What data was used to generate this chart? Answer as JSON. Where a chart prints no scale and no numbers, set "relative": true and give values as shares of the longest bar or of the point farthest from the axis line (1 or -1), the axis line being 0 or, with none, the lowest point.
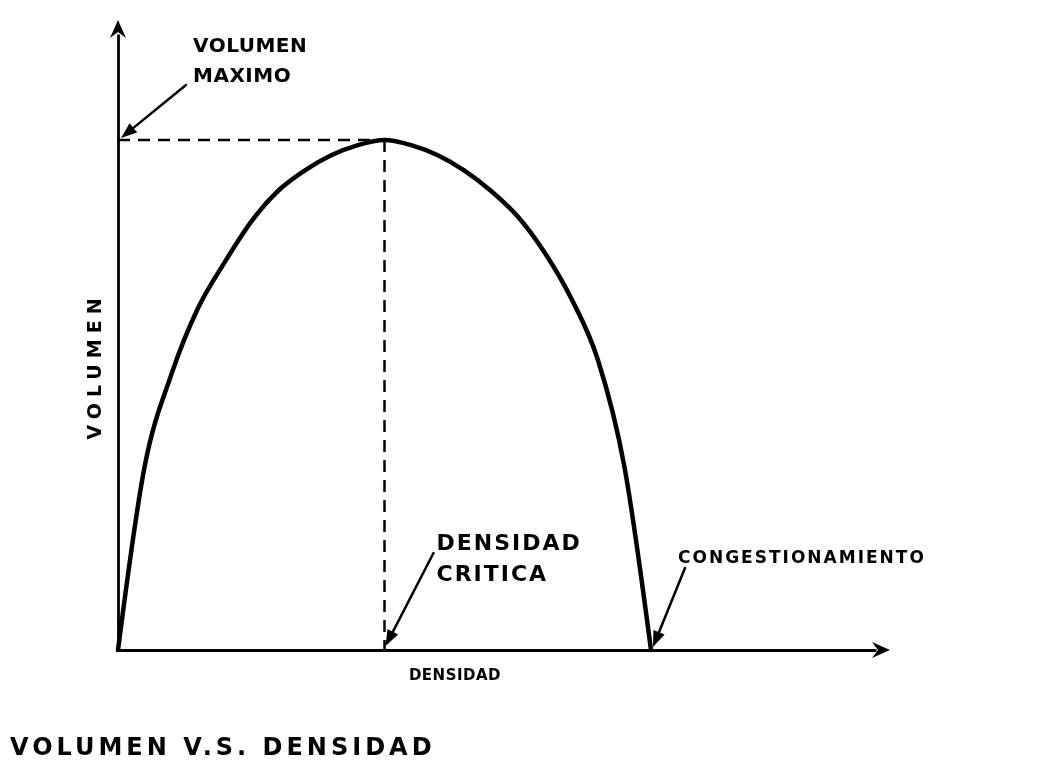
{
  "chart_data": {
    "type": "line",
    "title": "VOLUMEN V.S. DENSIDAD",
    "xlabel": "DENSIDAD",
    "ylabel": "VOLUMEN",
    "relative": true,
    "categories": [
      null,
      null,
      null,
      null,
      null,
      null,
      null,
      null,
      null,
      null,
      null,
      null,
      null,
      null,
      null,
      null,
      null,
      null,
      null,
      null,
      null
    ],
    "series": [
      {
        "color": "#000000",
        "values": [
          0,
          0.36,
          0.54,
          0.67,
          0.76,
          0.84,
          0.9,
          0.94,
          0.97,
          0.99,
          1,
          0.99,
          0.97,
          0.94,
          0.9,
          0.85,
          0.78,
          0.69,
          0.57,
          0.36,
          0
        ]
      }
    ],
    "ref_lines": [
      {
        "axis": "y",
        "value": 1,
        "label": "VOLUMEN MAXIMO",
        "line_style": "dashed"
      }
    ],
    "annotations": [
      "DENSIDAD CRITICA",
      "CONGESTIONAMIENTO"
    ]
  }
}
